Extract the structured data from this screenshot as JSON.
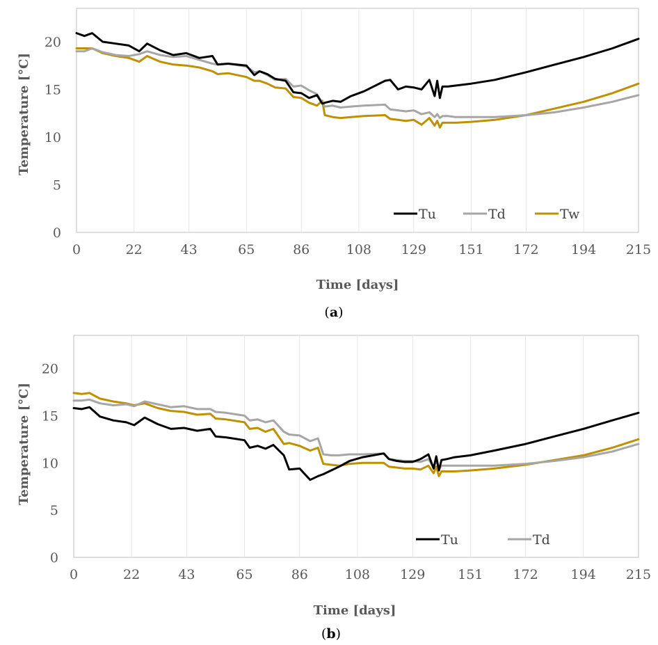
{
  "chart_data": [
    {
      "type": "line",
      "caption_letter": "a",
      "xlabel": "Time [days]",
      "ylabel": "Temperature [°C]",
      "xlim": [
        0,
        215
      ],
      "ylim": [
        0,
        23.5
      ],
      "xticks": [
        0,
        22,
        43,
        65,
        86,
        108,
        129,
        151,
        172,
        194,
        215
      ],
      "yticks": [
        0,
        5,
        10,
        15,
        20
      ],
      "grid": "vertical",
      "legend_position": "bottom-right",
      "colors": {
        "Tu": "#000000",
        "Td": "#a6a6a6",
        "Tw": "#bf9000"
      },
      "series": [
        {
          "name": "Tu",
          "color": "#000000",
          "x": [
            0,
            3,
            6,
            10,
            15,
            20,
            24,
            27,
            32,
            37,
            42,
            47,
            52,
            54,
            58,
            65,
            68,
            70,
            73,
            76,
            80,
            83,
            86,
            89,
            92,
            94,
            95,
            98,
            101,
            105,
            110,
            118,
            120,
            123,
            126,
            129,
            132,
            135,
            137,
            138,
            139,
            140,
            142,
            145,
            151,
            160,
            172,
            183,
            194,
            205,
            215
          ],
          "values": [
            20.9,
            20.6,
            20.9,
            20.0,
            19.8,
            19.6,
            19.0,
            19.8,
            19.1,
            18.6,
            18.8,
            18.3,
            18.5,
            17.6,
            17.7,
            17.5,
            16.5,
            16.9,
            16.6,
            16.1,
            15.9,
            14.7,
            14.6,
            14.1,
            14.4,
            13.5,
            13.6,
            13.8,
            13.7,
            14.3,
            14.8,
            15.9,
            16.0,
            15.0,
            15.3,
            15.2,
            15.0,
            16.0,
            14.3,
            15.9,
            14.1,
            15.3,
            15.3,
            15.4,
            15.6,
            16.0,
            16.8,
            17.6,
            18.4,
            19.3,
            20.3
          ]
        },
        {
          "name": "Td",
          "color": "#a6a6a6",
          "x": [
            0,
            3,
            6,
            10,
            15,
            20,
            24,
            27,
            32,
            37,
            42,
            47,
            52,
            54,
            58,
            65,
            68,
            70,
            73,
            76,
            80,
            83,
            86,
            89,
            92,
            94,
            95,
            98,
            101,
            105,
            110,
            118,
            120,
            123,
            126,
            129,
            132,
            135,
            137,
            138,
            139,
            140,
            142,
            145,
            151,
            160,
            172,
            183,
            194,
            205,
            215
          ],
          "values": [
            19.0,
            19.0,
            19.3,
            18.9,
            18.6,
            18.5,
            18.7,
            19.0,
            18.6,
            18.4,
            18.5,
            18.1,
            17.7,
            17.6,
            17.7,
            17.4,
            16.8,
            16.9,
            16.5,
            16.0,
            16.1,
            15.3,
            15.4,
            14.9,
            14.5,
            13.6,
            13.2,
            13.3,
            13.1,
            13.2,
            13.3,
            13.4,
            12.9,
            12.8,
            12.7,
            12.8,
            12.4,
            12.6,
            12.1,
            12.4,
            12.0,
            12.2,
            12.2,
            12.1,
            12.1,
            12.1,
            12.3,
            12.6,
            13.1,
            13.7,
            14.4
          ]
        },
        {
          "name": "Tw",
          "color": "#bf9000",
          "x": [
            0,
            3,
            6,
            10,
            15,
            20,
            24,
            27,
            32,
            37,
            42,
            47,
            52,
            54,
            58,
            65,
            68,
            70,
            73,
            76,
            80,
            83,
            86,
            89,
            92,
            94,
            95,
            98,
            101,
            105,
            110,
            118,
            120,
            123,
            126,
            129,
            132,
            135,
            137,
            138,
            139,
            140,
            142,
            145,
            151,
            160,
            172,
            183,
            194,
            205,
            215
          ],
          "values": [
            19.3,
            19.3,
            19.3,
            18.8,
            18.5,
            18.3,
            17.9,
            18.5,
            17.9,
            17.6,
            17.5,
            17.3,
            16.9,
            16.6,
            16.7,
            16.3,
            15.9,
            15.9,
            15.6,
            15.2,
            15.1,
            14.2,
            14.1,
            13.6,
            13.3,
            13.8,
            12.3,
            12.1,
            12.0,
            12.1,
            12.2,
            12.3,
            11.9,
            11.8,
            11.7,
            11.8,
            11.3,
            12.0,
            11.2,
            11.7,
            11.0,
            11.5,
            11.5,
            11.5,
            11.6,
            11.8,
            12.3,
            13.0,
            13.7,
            14.6,
            15.6
          ]
        }
      ]
    },
    {
      "type": "line",
      "caption_letter": "b",
      "xlabel": "Time [days]",
      "ylabel": "Temperature [°C]",
      "xlim": [
        0,
        215
      ],
      "ylim": [
        0,
        23.5
      ],
      "xticks": [
        0,
        22,
        43,
        65,
        86,
        108,
        129,
        151,
        172,
        194,
        215
      ],
      "yticks": [
        0,
        5,
        10,
        15,
        20
      ],
      "grid": "vertical",
      "legend_position": "bottom-right",
      "colors": {
        "Tu": "#000000",
        "Td": "#a6a6a6"
      },
      "series": [
        {
          "name": "Tu",
          "color": "#000000",
          "x": [
            0,
            3,
            6,
            10,
            15,
            20,
            23,
            27,
            32,
            37,
            42,
            47,
            52,
            54,
            58,
            65,
            67,
            70,
            73,
            76,
            80,
            82,
            86,
            90,
            93,
            95,
            98,
            101,
            105,
            110,
            118,
            120,
            123,
            126,
            129,
            132,
            135,
            137,
            138,
            139,
            140,
            142,
            145,
            151,
            160,
            172,
            183,
            194,
            205,
            215
          ],
          "values": [
            15.8,
            15.7,
            15.9,
            14.9,
            14.5,
            14.3,
            14.0,
            14.8,
            14.1,
            13.6,
            13.7,
            13.4,
            13.6,
            12.8,
            12.7,
            12.4,
            11.6,
            11.8,
            11.5,
            11.9,
            10.8,
            9.3,
            9.4,
            8.2,
            8.6,
            8.8,
            9.2,
            9.6,
            10.2,
            10.6,
            11.0,
            10.4,
            10.2,
            10.1,
            10.1,
            10.4,
            10.9,
            9.4,
            10.7,
            9.2,
            10.3,
            10.4,
            10.6,
            10.8,
            11.3,
            12.0,
            12.8,
            13.6,
            14.5,
            15.3
          ]
        },
        {
          "name": "Td",
          "color": "#a6a6a6",
          "x": [
            0,
            3,
            6,
            10,
            15,
            20,
            23,
            27,
            32,
            37,
            42,
            47,
            52,
            54,
            58,
            65,
            67,
            70,
            73,
            76,
            80,
            82,
            86,
            90,
            93,
            95,
            98,
            101,
            105,
            110,
            118,
            120,
            123,
            126,
            129,
            132,
            135,
            137,
            138,
            139,
            140,
            142,
            145,
            151,
            160,
            172,
            183,
            194,
            205,
            215
          ],
          "values": [
            16.6,
            16.6,
            16.7,
            16.3,
            16.1,
            16.2,
            16.0,
            16.5,
            16.2,
            15.9,
            16.0,
            15.7,
            15.7,
            15.4,
            15.3,
            15.0,
            14.5,
            14.6,
            14.3,
            14.5,
            13.3,
            13.0,
            12.9,
            12.3,
            12.6,
            10.9,
            10.8,
            10.8,
            10.9,
            10.9,
            11.0,
            10.4,
            10.3,
            10.2,
            10.2,
            10.1,
            10.4,
            9.5,
            10.3,
            9.3,
            9.7,
            9.7,
            9.7,
            9.7,
            9.7,
            9.9,
            10.2,
            10.6,
            11.2,
            12.0
          ]
        },
        {
          "name": "",
          "color": "#bf9000",
          "x": [
            0,
            3,
            6,
            10,
            15,
            20,
            23,
            27,
            32,
            37,
            42,
            47,
            52,
            54,
            58,
            65,
            67,
            70,
            73,
            76,
            80,
            82,
            86,
            90,
            93,
            95,
            98,
            101,
            105,
            110,
            118,
            120,
            123,
            126,
            129,
            132,
            135,
            137,
            138,
            139,
            140,
            142,
            145,
            151,
            160,
            172,
            183,
            194,
            205,
            215
          ],
          "values": [
            17.4,
            17.3,
            17.4,
            16.8,
            16.5,
            16.3,
            16.1,
            16.3,
            15.8,
            15.5,
            15.4,
            15.1,
            15.2,
            14.7,
            14.6,
            14.3,
            13.6,
            13.7,
            13.3,
            13.6,
            12.0,
            12.1,
            11.8,
            11.3,
            11.6,
            9.9,
            9.8,
            9.7,
            9.9,
            10.0,
            10.0,
            9.6,
            9.5,
            9.4,
            9.4,
            9.3,
            9.7,
            8.9,
            9.6,
            8.6,
            9.1,
            9.1,
            9.1,
            9.2,
            9.4,
            9.8,
            10.3,
            10.8,
            11.6,
            12.5
          ]
        }
      ]
    }
  ]
}
